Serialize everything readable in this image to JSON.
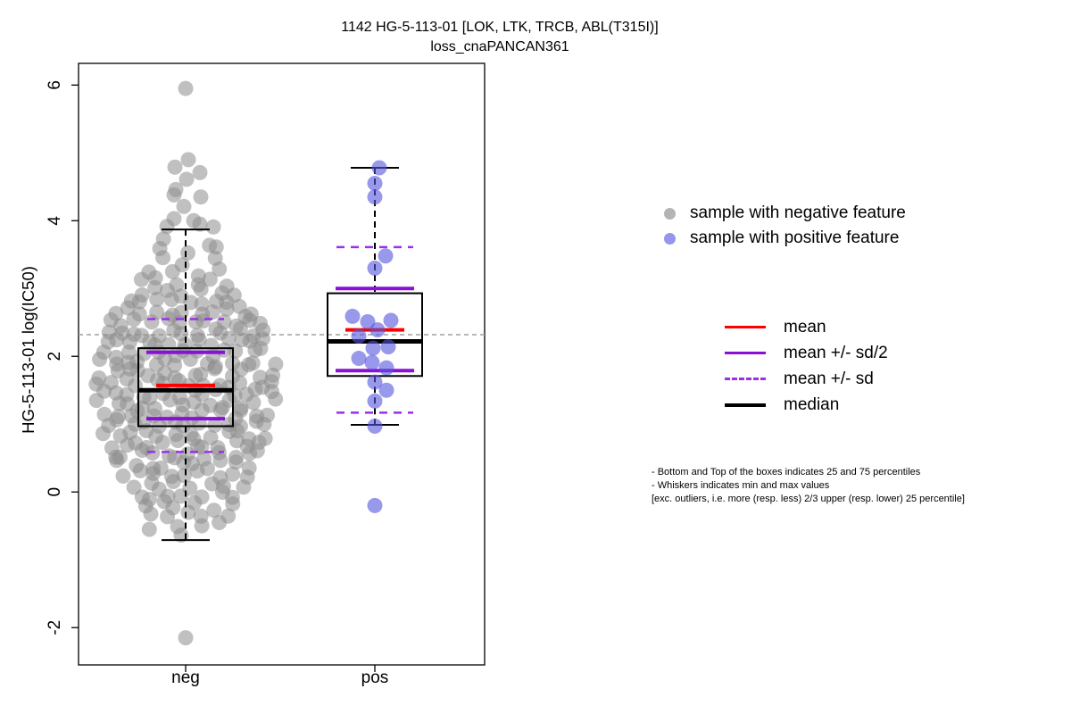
{
  "title": "1142 HG-5-113-01 [LOK, LTK, TRCB, ABL(T315I)]",
  "subtitle": "loss_cnaPANCAN361",
  "point_legend": {
    "items": [
      {
        "label": "sample with negative feature",
        "color": "#b4b4b4"
      },
      {
        "label": "sample with positive feature",
        "color": "#9595ee"
      }
    ]
  },
  "line_legend": {
    "items": [
      {
        "label": "mean",
        "color": "#ff0000",
        "style": "solid",
        "weight": 3
      },
      {
        "label": "mean +/- sd/2",
        "color": "#8a10d8",
        "style": "solid",
        "weight": 3
      },
      {
        "label": "mean +/- sd",
        "color": "#9d2fea",
        "style": "dashed",
        "weight": 3
      },
      {
        "label": "median",
        "color": "#000000",
        "style": "solid",
        "weight": 4
      }
    ]
  },
  "footnote": {
    "line1": "- Bottom and Top of the boxes indicates 25 and 75 percentiles",
    "line2": "- Whiskers indicates min and max values",
    "line3": "[exc. outliers, i.e. more (resp. less) 2/3 upper (resp. lower) 25 percentile]"
  },
  "chart_data": {
    "type": "boxplot_with_jitter",
    "title": "1142 HG-5-113-01 [LOK, LTK, TRCB, ABL(T315I)]",
    "subtitle": "loss_cnaPANCAN361",
    "ylabel": "HG-5-113-01 log(IC50)",
    "categories": [
      "neg",
      "pos"
    ],
    "yticks": [
      -2,
      0,
      2,
      4,
      6
    ],
    "ylim": [
      -2.55,
      6.32
    ],
    "grid": false,
    "threshold_line": 2.32,
    "threshold_color": "#a0a0a0",
    "colors": {
      "neg_point": "#8c8c8c",
      "pos_point": "#5555dd",
      "mean": "#ff0000",
      "sd_band": "#8a10d8",
      "sd_dashed": "#9d2fea",
      "median": "#000000"
    },
    "groups": [
      {
        "name": "neg",
        "stats": {
          "median": 1.5,
          "mean": 1.57,
          "q1": 0.97,
          "q3": 2.12,
          "mean_minus_sd2": 1.08,
          "mean_plus_sd2": 2.06,
          "mean_minus_sd": 0.59,
          "mean_plus_sd": 2.55,
          "whisker_low": -0.71,
          "whisker_high": 3.87
        },
        "histogram": {
          "bin_centers": [
            3.87,
            3.7,
            3.55,
            3.4,
            3.25,
            3.1,
            2.95,
            2.8,
            2.65,
            2.5,
            2.35,
            2.2,
            2.05,
            1.9,
            1.75,
            1.6,
            1.45,
            1.3,
            1.15,
            1.0,
            0.85,
            0.7,
            0.55,
            0.4,
            0.25,
            0.1,
            -0.05,
            -0.2,
            -0.35,
            -0.5,
            -0.7
          ],
          "counts": [
            2,
            2,
            3,
            3,
            4,
            6,
            7,
            9,
            11,
            12,
            13,
            13,
            13,
            14,
            14,
            14,
            14,
            14,
            14,
            13,
            13,
            12,
            12,
            10,
            9,
            8,
            7,
            6,
            5,
            4,
            1
          ]
        },
        "extra_points": [
          [
            0,
            5.95
          ],
          [
            3,
            4.9
          ],
          [
            -12,
            4.79
          ],
          [
            16,
            4.71
          ],
          [
            1,
            4.61
          ],
          [
            -11,
            4.46
          ],
          [
            -13,
            4.38
          ],
          [
            17,
            4.35
          ],
          [
            -2,
            4.21
          ],
          [
            -13,
            4.03
          ],
          [
            9,
            4.0
          ],
          [
            16,
            3.95
          ],
          [
            0,
            -2.15
          ]
        ]
      },
      {
        "name": "pos",
        "stats": {
          "median": 2.22,
          "mean": 2.39,
          "q1": 1.71,
          "q3": 2.93,
          "mean_minus_sd2": 1.79,
          "mean_plus_sd2": 3.0,
          "mean_minus_sd": 1.17,
          "mean_plus_sd": 3.61,
          "whisker_low": 0.99,
          "whisker_high": 4.78
        },
        "points": [
          [
            5,
            4.78
          ],
          [
            0,
            4.55
          ],
          [
            0,
            4.35
          ],
          [
            12,
            3.48
          ],
          [
            0,
            3.3
          ],
          [
            -25,
            2.59
          ],
          [
            18,
            2.53
          ],
          [
            -8,
            2.51
          ],
          [
            3,
            2.39
          ],
          [
            -18,
            2.3
          ],
          [
            15,
            2.14
          ],
          [
            -2,
            2.12
          ],
          [
            -18,
            1.97
          ],
          [
            -3,
            1.91
          ],
          [
            13,
            1.83
          ],
          [
            0,
            1.62
          ],
          [
            13,
            1.5
          ],
          [
            0,
            1.34
          ],
          [
            0,
            0.97
          ],
          [
            0,
            -0.2
          ]
        ]
      }
    ]
  }
}
